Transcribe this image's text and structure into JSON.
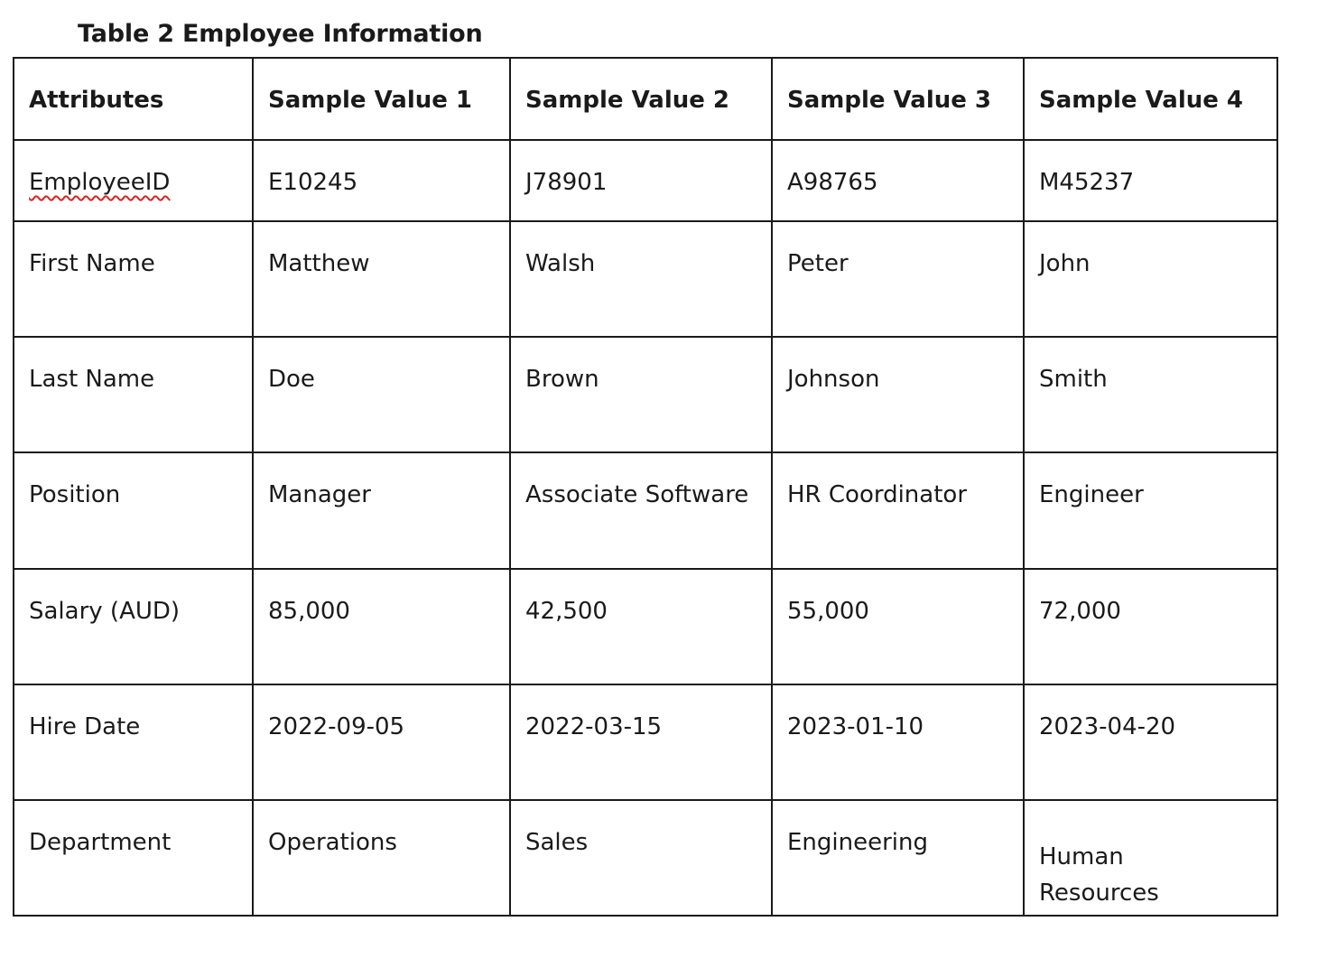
{
  "caption": "Table 2 Employee Information",
  "table": {
    "headers": [
      "Attributes",
      "Sample Value 1",
      "Sample Value 2",
      "Sample Value 3",
      "Sample Value 4"
    ],
    "rows": [
      {
        "attribute": "EmployeeID",
        "values": [
          "E10245",
          "J78901",
          "A98765",
          "M45237"
        ]
      },
      {
        "attribute": "First Name",
        "values": [
          "Matthew",
          "Walsh",
          "Peter",
          "John"
        ]
      },
      {
        "attribute": "Last Name",
        "values": [
          "Doe",
          "Brown",
          "Johnson",
          "Smith"
        ]
      },
      {
        "attribute": "Position",
        "values": [
          "Manager",
          "Associate Software",
          "HR Coordinator",
          "Engineer"
        ]
      },
      {
        "attribute": "Salary (AUD)",
        "values": [
          "85,000",
          "42,500",
          "55,000",
          "72,000"
        ]
      },
      {
        "attribute": "Hire Date",
        "values": [
          "2022-09-05",
          "2022-03-15",
          "2023-01-10",
          "2023-04-20"
        ]
      },
      {
        "attribute": "Department",
        "values": [
          "Operations",
          "Sales",
          "Engineering",
          "Human Resources"
        ]
      }
    ]
  },
  "colors": {
    "text": "#1a1a1a",
    "border": "#1a1a1a",
    "spellcheck_underline": "#dd2222"
  }
}
